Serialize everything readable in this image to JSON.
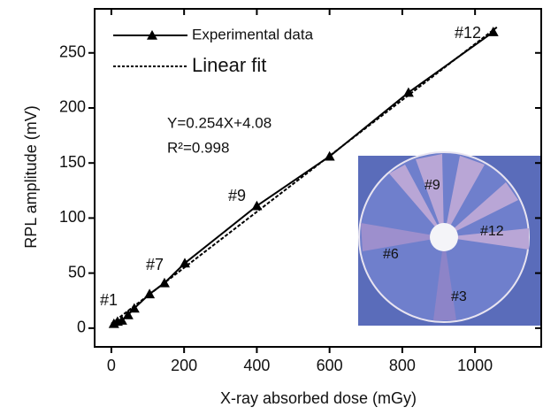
{
  "chart_data": {
    "type": "line",
    "x_label": "X-ray absorbed dose (mGy)",
    "y_label": "RPL amplitude (mV)",
    "xlim": [
      -46,
      1182
    ],
    "ylim": [
      -17,
      290
    ],
    "xticks": [
      0,
      200,
      400,
      600,
      800,
      1000
    ],
    "yticks": [
      0,
      50,
      100,
      150,
      200,
      250
    ],
    "legend": "upper left",
    "series": [
      {
        "name": "Experimental  data",
        "color": "#000000",
        "style": "solid",
        "marker": "triangle",
        "x": [
          7,
          17,
          29,
          46,
          63,
          105,
          146,
          202,
          400,
          600,
          817,
          1050
        ],
        "values": [
          4,
          6,
          7,
          12,
          18,
          31,
          41,
          59,
          111,
          156,
          214,
          269
        ]
      },
      {
        "name": "Linear fit",
        "color": "#000000",
        "style": "dotted",
        "x": [
          0,
          1060
        ],
        "values": [
          4.08,
          273.3
        ]
      }
    ],
    "equation": "Y=0.254X+4.08",
    "r_squared": "R²=0.998",
    "annotations": [
      "#1",
      "#7",
      "#9",
      "#12"
    ],
    "inset_labels": [
      "#9",
      "#6",
      "#12",
      "#3"
    ]
  }
}
